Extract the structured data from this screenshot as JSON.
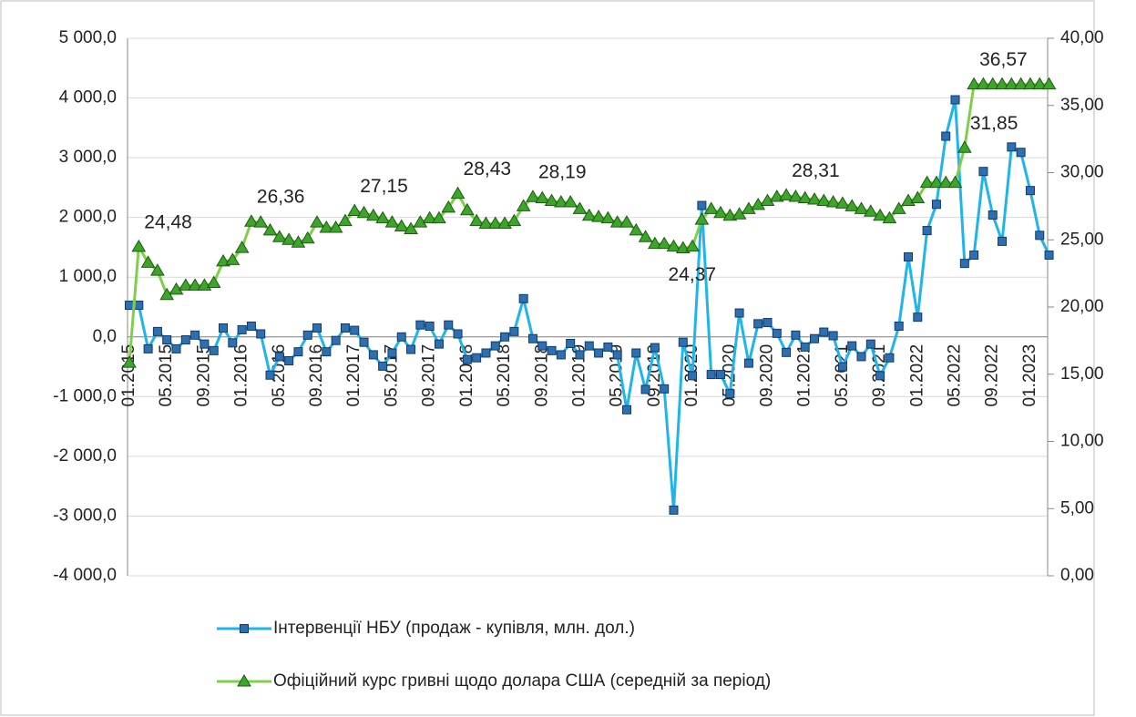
{
  "chart_data": {
    "type": "line",
    "categories": [
      "01.2015",
      null,
      null,
      null,
      "05.2015",
      null,
      null,
      null,
      "09.2015",
      null,
      null,
      null,
      "01.2016",
      null,
      null,
      null,
      "05.2016",
      null,
      null,
      null,
      "09.2016",
      null,
      null,
      null,
      "01.2017",
      null,
      null,
      null,
      "05.2017",
      null,
      null,
      null,
      "09.2017",
      null,
      null,
      null,
      "01.2018",
      null,
      null,
      null,
      "05.2018",
      null,
      null,
      null,
      "09.2018",
      null,
      null,
      null,
      "01.2019",
      null,
      null,
      null,
      "05.2019",
      null,
      null,
      null,
      "09.2019",
      null,
      null,
      null,
      "01.2020",
      null,
      null,
      null,
      "05.2020",
      null,
      null,
      null,
      "09.2020",
      null,
      null,
      null,
      "01.2021",
      null,
      null,
      null,
      "05.2021",
      null,
      null,
      null,
      "09.2021",
      null,
      null,
      null,
      "01.2022",
      null,
      null,
      null,
      "05.2022",
      null,
      null,
      null,
      "09.2022",
      null,
      null,
      null,
      "01.2023",
      null,
      null
    ],
    "series": [
      {
        "name": "Інтервенції НБУ (продаж - купівля, млн. дол.)",
        "color": "#1fb4ec",
        "marker_color": "#2d6fb0",
        "values": [
          530,
          530,
          -200,
          90,
          -50,
          -200,
          -50,
          30,
          -120,
          -230,
          150,
          -100,
          120,
          180,
          50,
          -640,
          -330,
          -400,
          -250,
          30,
          150,
          -250,
          -60,
          150,
          110,
          -90,
          -300,
          -490,
          -270,
          0,
          -210,
          200,
          180,
          -120,
          200,
          50,
          -380,
          -350,
          -270,
          -150,
          0,
          90,
          640,
          -30,
          -150,
          -230,
          -300,
          -110,
          -300,
          -150,
          -270,
          -170,
          -300,
          -1220,
          -270,
          -880,
          -180,
          -870,
          -2900,
          -90,
          -650,
          2200,
          -630,
          -630,
          -950,
          400,
          -440,
          220,
          240,
          60,
          -260,
          30,
          -170,
          -30,
          80,
          20,
          -500,
          -150,
          -330,
          -120,
          -650,
          -350,
          180,
          1340,
          330,
          1780,
          2220,
          3360,
          3970,
          1230,
          1370,
          2770,
          2040,
          1600,
          3180,
          3090,
          2450,
          1700,
          1370
        ]
      },
      {
        "name": "Офіційний курс гривні щодо долара США (середній за період)",
        "color": "#7ed04b",
        "marker_color": "#3da62a",
        "axis": "y2",
        "values": [
          15.86,
          24.48,
          23.3,
          22.7,
          20.9,
          21.3,
          21.6,
          21.6,
          21.6,
          21.8,
          23.4,
          23.5,
          24.4,
          26.36,
          26.3,
          25.7,
          25.2,
          25.0,
          24.8,
          25.1,
          26.3,
          25.9,
          25.9,
          26.4,
          27.15,
          27.0,
          26.8,
          26.6,
          26.3,
          26.0,
          25.8,
          26.3,
          26.6,
          26.6,
          27.4,
          28.43,
          27.2,
          26.4,
          26.2,
          26.2,
          26.2,
          26.4,
          27.5,
          28.19,
          28.1,
          27.9,
          27.8,
          27.8,
          27.3,
          26.8,
          26.7,
          26.6,
          26.3,
          26.3,
          25.7,
          25.2,
          24.7,
          24.7,
          24.5,
          24.37,
          24.5,
          26.5,
          27.3,
          27.0,
          26.8,
          26.9,
          27.3,
          27.6,
          27.9,
          28.2,
          28.31,
          28.2,
          28.1,
          28.0,
          27.9,
          27.8,
          27.7,
          27.5,
          27.3,
          27.1,
          26.8,
          26.6,
          27.3,
          27.9,
          28.1,
          29.25,
          29.25,
          29.25,
          29.25,
          31.85,
          36.57,
          36.57,
          36.57,
          36.57,
          36.57,
          36.57,
          36.57,
          36.57,
          36.57
        ],
        "value_labels": [
          null,
          "24,48",
          null,
          null,
          null,
          null,
          null,
          null,
          null,
          null,
          null,
          null,
          null,
          "26,36",
          null,
          null,
          null,
          null,
          null,
          null,
          null,
          null,
          null,
          null,
          "27,15",
          null,
          null,
          null,
          null,
          null,
          null,
          null,
          null,
          null,
          null,
          "28,43",
          null,
          null,
          null,
          null,
          null,
          null,
          null,
          "28,19",
          null,
          null,
          null,
          null,
          null,
          null,
          null,
          null,
          null,
          null,
          null,
          null,
          null,
          null,
          null,
          "24,37",
          null,
          null,
          null,
          null,
          null,
          null,
          null,
          null,
          null,
          null,
          "28,31",
          null,
          null,
          null,
          null,
          null,
          null,
          null,
          null,
          null,
          null,
          null,
          null,
          null,
          null,
          null,
          null,
          null,
          null,
          "31,85",
          "36,57",
          null,
          null,
          null,
          null,
          null,
          null,
          null,
          null
        ]
      }
    ],
    "ylim": [
      -4000,
      5000
    ],
    "yticks": [
      {
        "value": -4000,
        "label": "-4 000,0"
      },
      {
        "value": -3000,
        "label": "-3 000,0"
      },
      {
        "value": -2000,
        "label": "-2 000,0"
      },
      {
        "value": -1000,
        "label": "-1 000,0"
      },
      {
        "value": 0,
        "label": "0,0"
      },
      {
        "value": 1000,
        "label": "1 000,0"
      },
      {
        "value": 2000,
        "label": "2 000,0"
      },
      {
        "value": 3000,
        "label": "3 000,0"
      },
      {
        "value": 4000,
        "label": "4 000,0"
      },
      {
        "value": 5000,
        "label": "5 000,0"
      }
    ],
    "y2lim": [
      0,
      40
    ],
    "y2ticks": [
      {
        "value": 0,
        "label": "0,00"
      },
      {
        "value": 5,
        "label": "5,00"
      },
      {
        "value": 10,
        "label": "10,00"
      },
      {
        "value": 15,
        "label": "15,00"
      },
      {
        "value": 20,
        "label": "20,00"
      },
      {
        "value": 25,
        "label": "25,00"
      },
      {
        "value": 30,
        "label": "30,00"
      },
      {
        "value": 35,
        "label": "35,00"
      },
      {
        "value": 40,
        "label": "40,00"
      }
    ],
    "grid": true,
    "legend": "bottom"
  }
}
